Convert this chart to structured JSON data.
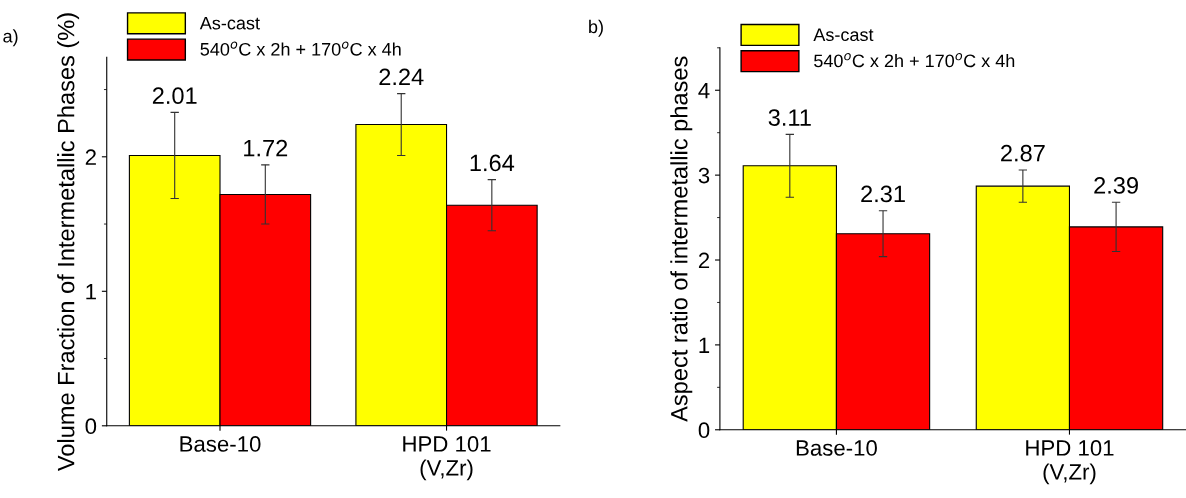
{
  "chart_data": [
    {
      "type": "bar",
      "ylabel": "Volume Fraction of Intermetallic Phases (%)",
      "categories": [
        "Base-10",
        "HPD 101\n(V,Zr)"
      ],
      "series": [
        {
          "name": "As-cast",
          "color": "#ffff00",
          "values": [
            2.01,
            2.24
          ],
          "errors": [
            0.32,
            0.23
          ]
        },
        {
          "name": "540$^{o}$C x 2h + 170$^{o}$C x 4h",
          "color": "#ff0000",
          "values": [
            1.72,
            1.64
          ],
          "errors": [
            0.22,
            0.19
          ]
        }
      ],
      "ylim": [
        0,
        2.74
      ],
      "yticks": [
        0,
        1,
        2
      ],
      "data_labels": true,
      "legend": "top left",
      "grid": false,
      "annotations": [
        "a)"
      ]
    },
    {
      "type": "bar",
      "ylabel": "Aspect ratio of intermetallic phases",
      "categories": [
        "Base-10",
        "HPD 101\n(V,Zr)"
      ],
      "series": [
        {
          "name": "As-cast",
          "color": "#ffff00",
          "values": [
            3.11,
            2.87
          ],
          "errors": [
            0.37,
            0.19
          ]
        },
        {
          "name": "540$^{o}$C x 2h + 170$^{o}$C x 4h",
          "color": "#ff0000",
          "values": [
            2.31,
            2.39
          ],
          "errors": [
            0.27,
            0.29
          ]
        }
      ],
      "ylim": [
        0,
        4.5
      ],
      "yticks": [
        0,
        1,
        2,
        3,
        4
      ],
      "data_labels": true,
      "legend": "top left",
      "grid": false,
      "annotations": [
        "b)"
      ]
    }
  ]
}
